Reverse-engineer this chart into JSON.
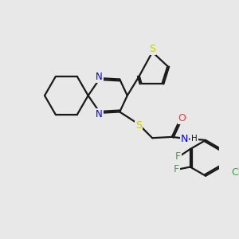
{
  "background_color": "#e8e8e8",
  "bond_color": "#1a1a1a",
  "N_color": "#0000ee",
  "S_color": "#cccc00",
  "O_color": "#ff3333",
  "F_color": "#33aa33",
  "Cl_color": "#33aa33",
  "line_width": 1.6,
  "dbo": 0.07,
  "xlim": [
    0,
    10
  ],
  "ylim": [
    0,
    10
  ]
}
